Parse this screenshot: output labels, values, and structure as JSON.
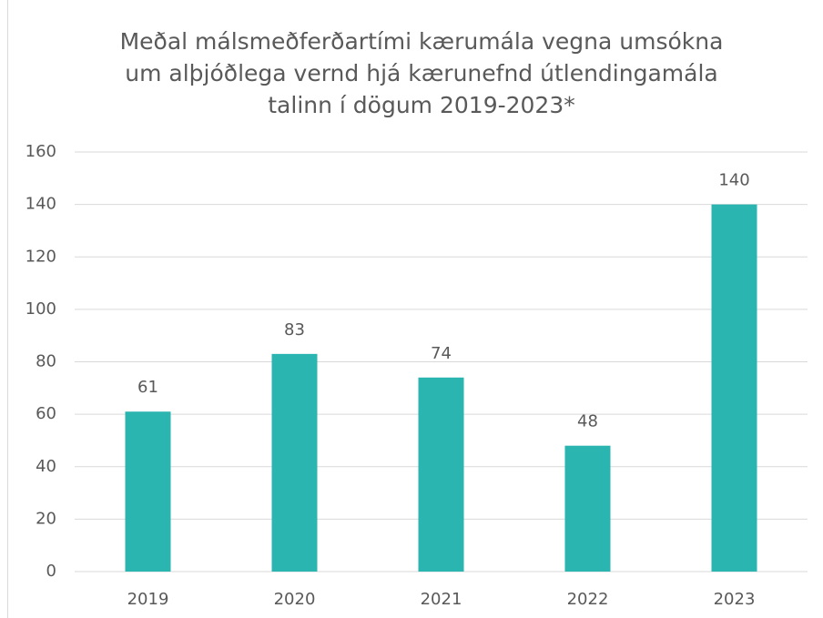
{
  "chart_data": {
    "type": "bar",
    "title": [
      "Meðal málsmeðferðartími kærumála vegna umsókna",
      "um alþjóðlega vernd hjá kærunefnd útlendingamála",
      "talinn í dögum 2019-2023*"
    ],
    "categories": [
      "2019",
      "2020",
      "2021",
      "2022",
      "2023"
    ],
    "values": [
      61,
      83,
      74,
      48,
      140
    ],
    "color": "#2bb5b0",
    "ylim": [
      0,
      160
    ],
    "yticks": [
      0,
      20,
      40,
      60,
      80,
      100,
      120,
      140,
      160
    ],
    "grid": true
  }
}
